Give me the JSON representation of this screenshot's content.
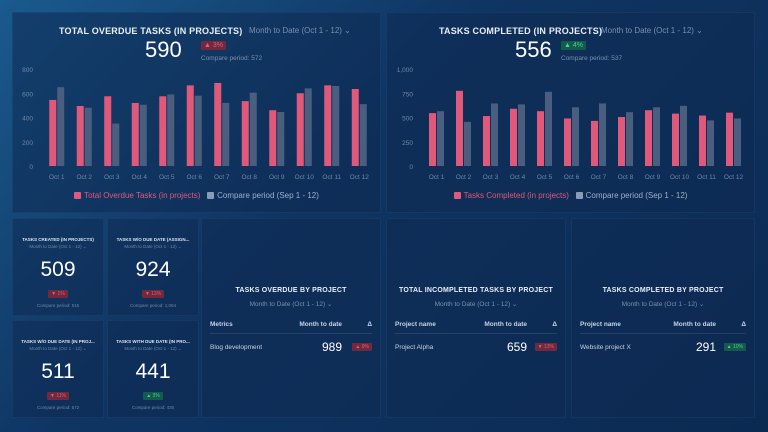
{
  "overdue": {
    "title": "TOTAL OVERDUE TASKS (IN PROJECTS)",
    "period": "Month to Date (Oct 1 - 12)",
    "value": "590",
    "delta": "▲ 3%",
    "delta_status": "bad",
    "compare": "Compare period: 572"
  },
  "completed": {
    "title": "TASKS COMPLETED (IN PROJECTS)",
    "period": "Month to Date (Oct 1 - 12)",
    "value": "556",
    "delta": "▲ 4%",
    "delta_status": "good",
    "compare": "Compare period: 537"
  },
  "chart_data": [
    {
      "type": "bar",
      "categories": [
        "Oct 1",
        "Oct 2",
        "Oct 3",
        "Oct 4",
        "Oct 5",
        "Oct 6",
        "Oct 7",
        "Oct 8",
        "Oct 9",
        "Oct 10",
        "Oct 11",
        "Oct 12"
      ],
      "ylim": [
        0,
        800
      ],
      "yticks": [
        "0",
        "200",
        "400",
        "600",
        "800"
      ],
      "legend": "bottom",
      "series": [
        {
          "name": "Total Overdue Tasks (in projects)",
          "color": "#e0597a",
          "values": [
            545,
            495,
            575,
            520,
            575,
            665,
            685,
            535,
            460,
            600,
            665,
            635
          ]
        },
        {
          "name": "Compare period (Sep 1 - 12)",
          "color": "#4a5f7f",
          "values": [
            650,
            480,
            350,
            505,
            590,
            580,
            520,
            605,
            445,
            640,
            660,
            510
          ]
        }
      ]
    },
    {
      "type": "bar",
      "categories": [
        "Oct 1",
        "Oct 2",
        "Oct 3",
        "Oct 4",
        "Oct 5",
        "Oct 6",
        "Oct 7",
        "Oct 8",
        "Oct 9",
        "Oct 10",
        "Oct 11",
        "Oct 12"
      ],
      "ylim": [
        0,
        1000
      ],
      "yticks": [
        "0",
        "250",
        "500",
        "750",
        "1,000"
      ],
      "legend": "bottom",
      "series": [
        {
          "name": "Tasks Completed (in projects)",
          "color": "#e0597a",
          "values": [
            545,
            775,
            515,
            590,
            565,
            490,
            465,
            505,
            575,
            540,
            520,
            550
          ]
        },
        {
          "name": "Compare period (Sep 1 - 12)",
          "color": "#4a5f7f",
          "values": [
            565,
            455,
            645,
            635,
            765,
            605,
            645,
            555,
            605,
            620,
            470,
            490
          ]
        }
      ]
    }
  ],
  "tiles": [
    {
      "title": "TASKS CREATED (IN PROJECTS)",
      "period": "Month to Date (Oct 1 - 12) ⌄",
      "value": "509",
      "delta": "▼ 1%",
      "status": "bad",
      "compare": "Compare period: 515"
    },
    {
      "title": "TASKS W/O DUE DATE (ASSIGN...",
      "period": "Month to Date (Oct 1 - 12) ⌄",
      "value": "924",
      "delta": "▼ 13%",
      "status": "bad",
      "compare": "Compare period: 1,064"
    },
    {
      "title": "TASKS W/O DUE DATE (IN PROJ...",
      "period": "Month to Date (Oct 1 - 12) ⌄",
      "value": "511",
      "delta": "▼ 11%",
      "status": "bad",
      "compare": "Compare period: 572"
    },
    {
      "title": "TASKS WITH DUE DATE (IN PRO...",
      "period": "Month to Date (Oct 1 - 12) ⌄",
      "value": "441",
      "delta": "▲ 3%",
      "status": "good",
      "compare": "Compare period: 430"
    }
  ],
  "tables": [
    {
      "title": "TASKS OVERDUE BY PROJECT",
      "period": "Month to Date (Oct 1 - 12) ⌄",
      "headers": [
        "Metrics",
        "Month to date",
        "Δ"
      ],
      "row": {
        "name": "Blog development",
        "value": "989",
        "delta": "▲ 9%",
        "status": "bad"
      }
    },
    {
      "title": "TOTAL INCOMPLETED TASKS BY PROJECT",
      "period": "Month to Date (Oct 1 - 12) ⌄",
      "headers": [
        "Project name",
        "Month to date",
        "Δ"
      ],
      "row": {
        "name": "Project Alpha",
        "value": "659",
        "delta": "▼ 13%",
        "status": "bad"
      }
    },
    {
      "title": "TASKS COMPLETED BY PROJECT",
      "period": "Month to Date (Oct 1 - 12) ⌄",
      "headers": [
        "Project name",
        "Month to date",
        "Δ"
      ],
      "row": {
        "name": "Website project X",
        "value": "291",
        "delta": "▲ 10%",
        "status": "good"
      }
    }
  ]
}
